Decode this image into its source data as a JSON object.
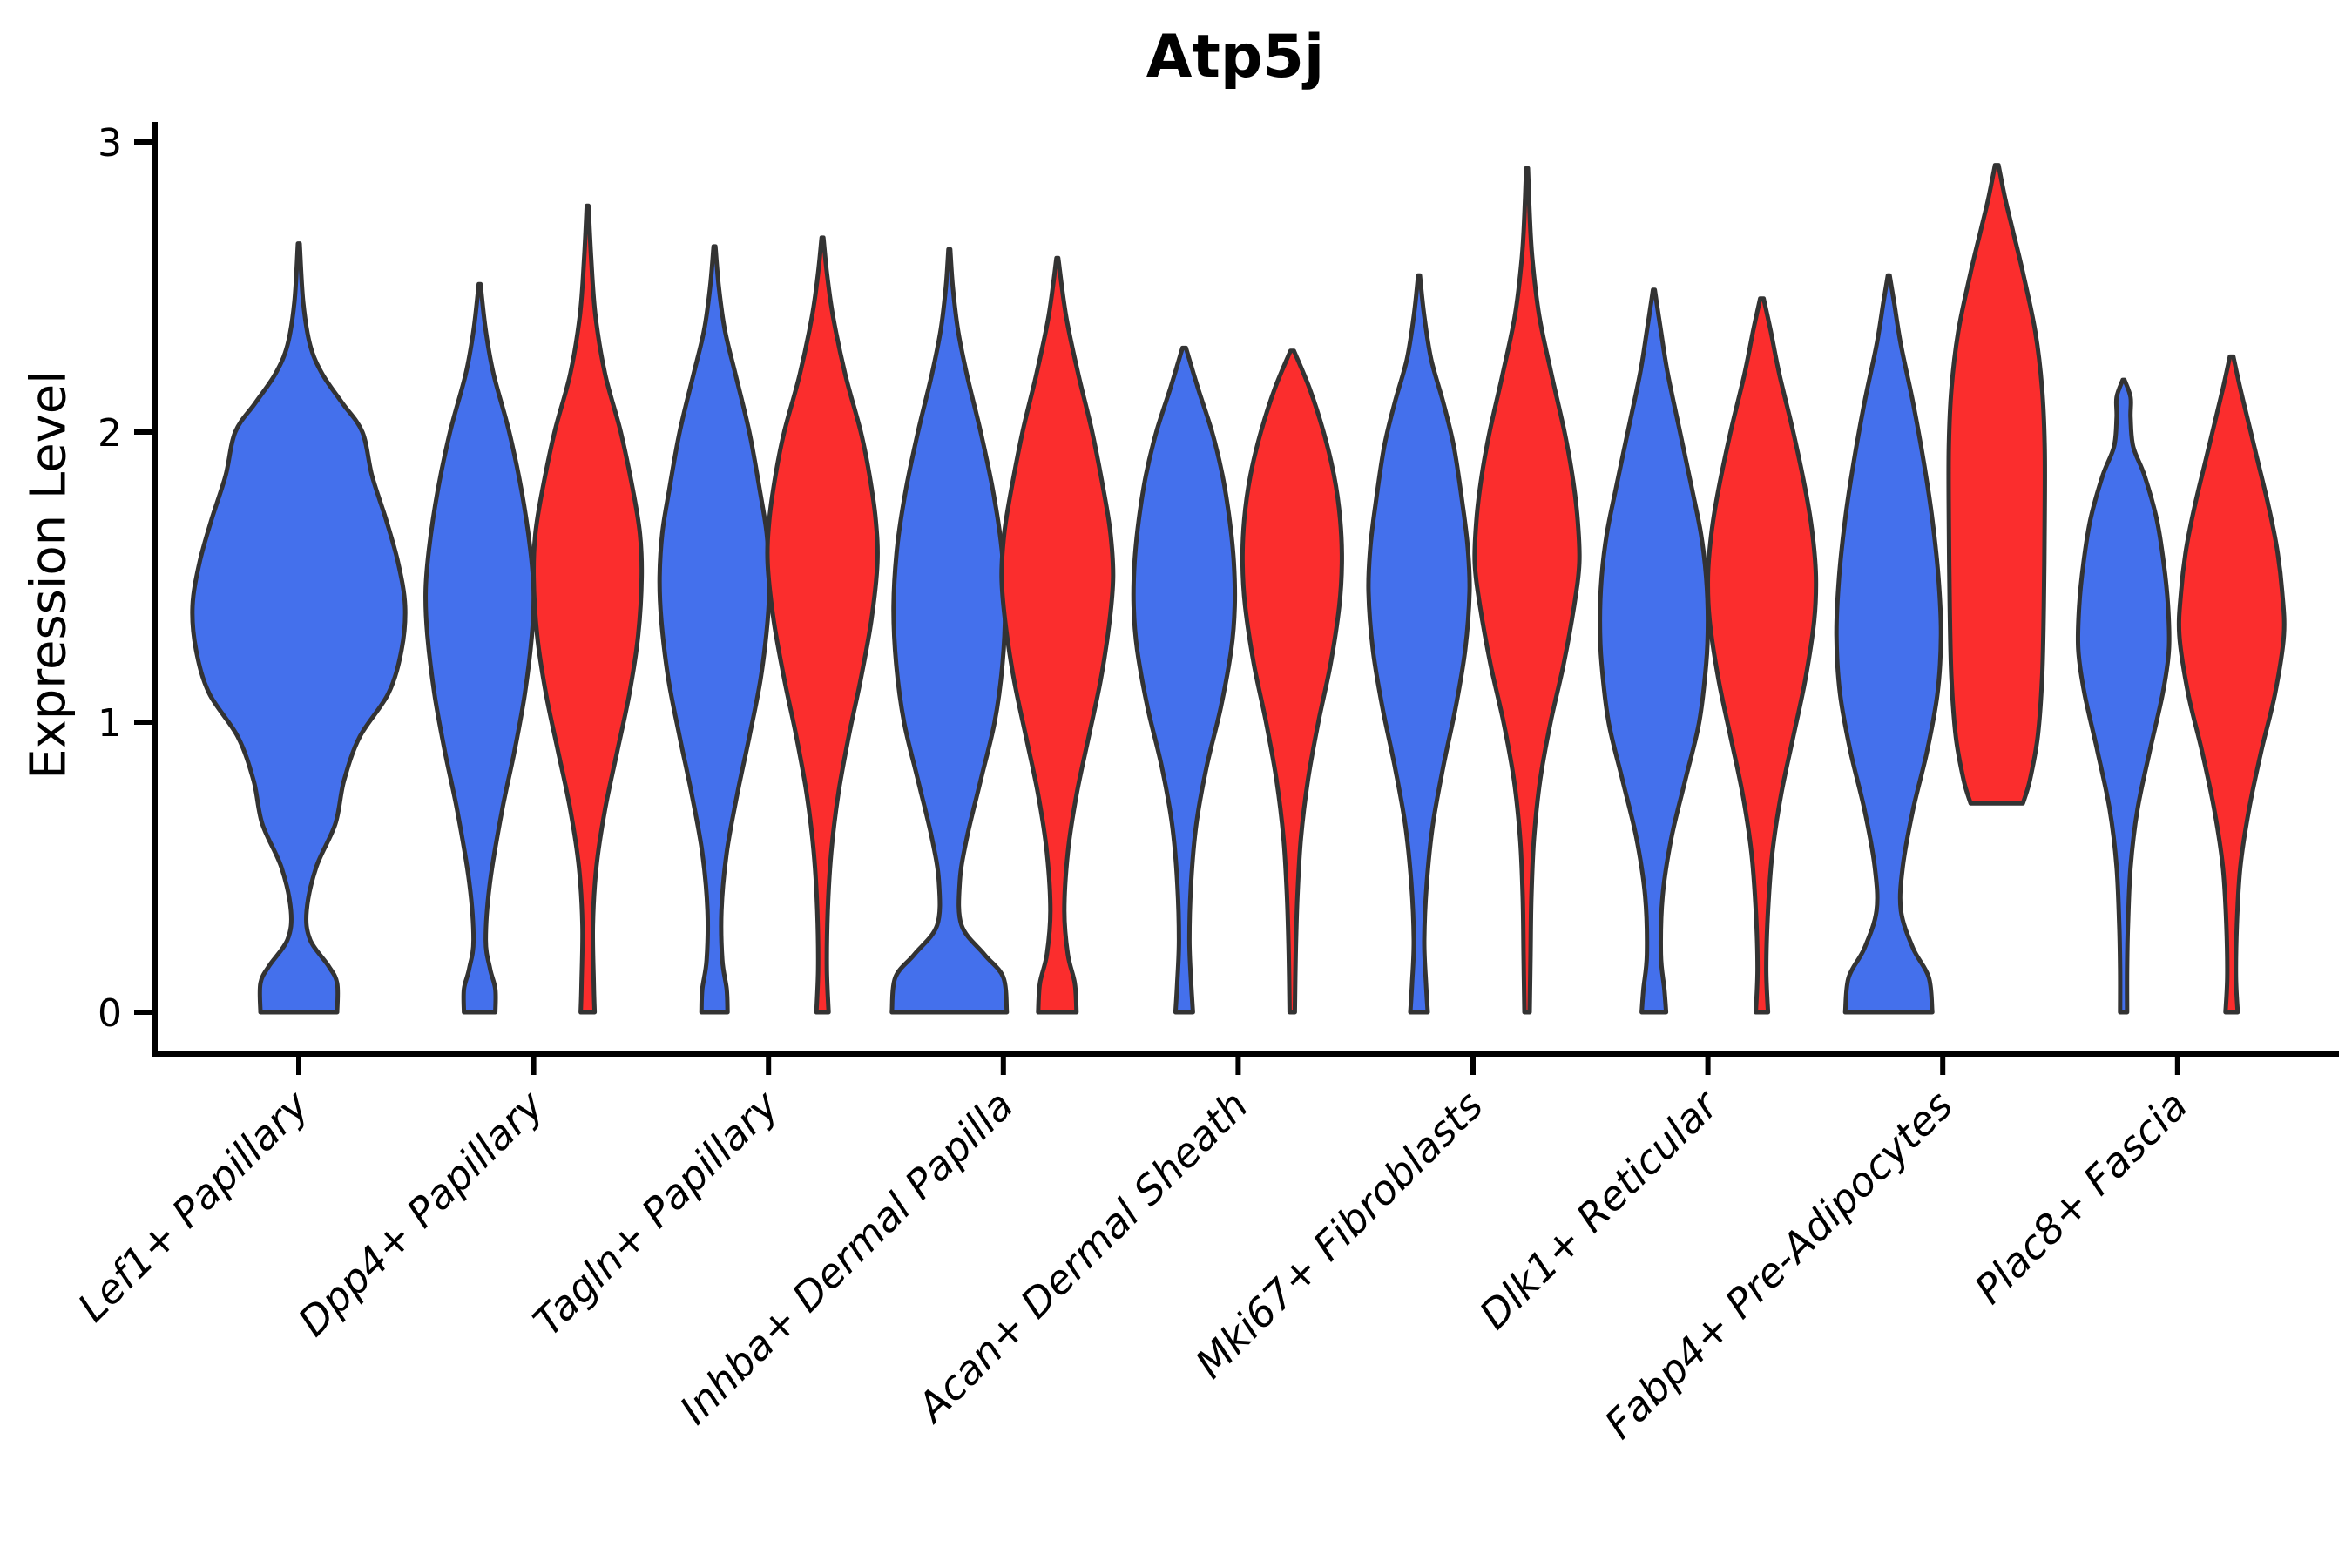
{
  "title": "Atp5j",
  "colors": {
    "blue": "#4470EC",
    "red": "#FB2D2D",
    "outline": "#333333",
    "axis": "#000000",
    "text": "#000000"
  },
  "chart_data": {
    "type": "violin",
    "title": "Atp5j",
    "xlabel": "",
    "ylabel": "Expression Level",
    "ylim": [
      0,
      3
    ],
    "y_ticks": [
      0,
      1,
      2,
      3
    ],
    "grid": false,
    "legend": "none",
    "x_tick_label_style": "italic, rotated 45deg, anchored at tick",
    "categories": [
      "Lef1+ Papillary",
      "Dpp4+ Papillary",
      "Tagln+ Papillary",
      "Inhba+ Dermal Papilla",
      "Acan+ Dermal Sheath",
      "Mki67+ Fibroblasts",
      "Dlk1+ Reticular",
      "Fabp4+ Pre-Adipocytes",
      "Plac8+ Fascia"
    ],
    "series": [
      {
        "name": "blue",
        "color": "#4470EC"
      },
      {
        "name": "red",
        "color": "#FB2D2D"
      }
    ],
    "violin_note": "profile = [expression_value, half_width_px]; one violin per category+series; first category has a single centered blue violin; Fabp4+ red violin is truncated flat at value 0.72",
    "violins": [
      {
        "category": 0,
        "series": "blue",
        "position": "center",
        "min_value": 0,
        "max_value": 2.65,
        "profile": [
          [
            0,
            44
          ],
          [
            0.1,
            44
          ],
          [
            0.16,
            34
          ],
          [
            0.25,
            13
          ],
          [
            0.35,
            9
          ],
          [
            0.5,
            20
          ],
          [
            0.65,
            42
          ],
          [
            0.8,
            52
          ],
          [
            0.95,
            70
          ],
          [
            1.1,
            103
          ],
          [
            1.25,
            118
          ],
          [
            1.4,
            122
          ],
          [
            1.55,
            114
          ],
          [
            1.7,
            100
          ],
          [
            1.85,
            84
          ],
          [
            2.0,
            73
          ],
          [
            2.1,
            50
          ],
          [
            2.2,
            27
          ],
          [
            2.3,
            13
          ],
          [
            2.45,
            5
          ],
          [
            2.65,
            1
          ]
        ]
      },
      {
        "category": 1,
        "series": "blue",
        "position": "left",
        "min_value": 0,
        "max_value": 2.51,
        "profile": [
          [
            0,
            18
          ],
          [
            0.08,
            18
          ],
          [
            0.15,
            12
          ],
          [
            0.25,
            7
          ],
          [
            0.45,
            12
          ],
          [
            0.7,
            26
          ],
          [
            0.9,
            40
          ],
          [
            1.1,
            52
          ],
          [
            1.3,
            60
          ],
          [
            1.45,
            62
          ],
          [
            1.6,
            58
          ],
          [
            1.8,
            48
          ],
          [
            2.0,
            34
          ],
          [
            2.2,
            16
          ],
          [
            2.35,
            7
          ],
          [
            2.51,
            1
          ]
        ]
      },
      {
        "category": 1,
        "series": "red",
        "position": "right",
        "min_value": 0,
        "max_value": 2.78,
        "profile": [
          [
            0,
            8
          ],
          [
            0.1,
            7
          ],
          [
            0.3,
            6
          ],
          [
            0.5,
            10
          ],
          [
            0.7,
            20
          ],
          [
            0.9,
            34
          ],
          [
            1.1,
            48
          ],
          [
            1.3,
            58
          ],
          [
            1.5,
            62
          ],
          [
            1.65,
            60
          ],
          [
            1.8,
            52
          ],
          [
            2.0,
            38
          ],
          [
            2.2,
            20
          ],
          [
            2.4,
            9
          ],
          [
            2.6,
            4
          ],
          [
            2.78,
            1
          ]
        ]
      },
      {
        "category": 2,
        "series": "blue",
        "position": "left",
        "min_value": 0,
        "max_value": 2.64,
        "profile": [
          [
            0,
            15
          ],
          [
            0.08,
            14
          ],
          [
            0.18,
            9
          ],
          [
            0.35,
            8
          ],
          [
            0.55,
            14
          ],
          [
            0.75,
            26
          ],
          [
            0.95,
            40
          ],
          [
            1.15,
            53
          ],
          [
            1.35,
            61
          ],
          [
            1.5,
            63
          ],
          [
            1.65,
            60
          ],
          [
            1.8,
            52
          ],
          [
            2.0,
            40
          ],
          [
            2.2,
            24
          ],
          [
            2.35,
            12
          ],
          [
            2.5,
            5
          ],
          [
            2.64,
            1
          ]
        ]
      },
      {
        "category": 2,
        "series": "red",
        "position": "right",
        "min_value": 0,
        "max_value": 2.67,
        "profile": [
          [
            0,
            7
          ],
          [
            0.15,
            5
          ],
          [
            0.35,
            6
          ],
          [
            0.55,
            10
          ],
          [
            0.75,
            18
          ],
          [
            0.95,
            30
          ],
          [
            1.15,
            44
          ],
          [
            1.35,
            56
          ],
          [
            1.55,
            63
          ],
          [
            1.7,
            61
          ],
          [
            1.85,
            54
          ],
          [
            2.0,
            44
          ],
          [
            2.2,
            26
          ],
          [
            2.4,
            12
          ],
          [
            2.55,
            5
          ],
          [
            2.67,
            1
          ]
        ]
      },
      {
        "category": 3,
        "series": "blue",
        "position": "left",
        "min_value": 0,
        "max_value": 2.63,
        "profile": [
          [
            0,
            66
          ],
          [
            0.12,
            62
          ],
          [
            0.2,
            40
          ],
          [
            0.3,
            14
          ],
          [
            0.45,
            12
          ],
          [
            0.6,
            20
          ],
          [
            0.8,
            36
          ],
          [
            1.0,
            52
          ],
          [
            1.2,
            61
          ],
          [
            1.4,
            64
          ],
          [
            1.6,
            60
          ],
          [
            1.8,
            50
          ],
          [
            2.0,
            36
          ],
          [
            2.2,
            20
          ],
          [
            2.35,
            10
          ],
          [
            2.5,
            4
          ],
          [
            2.63,
            1
          ]
        ]
      },
      {
        "category": 3,
        "series": "red",
        "position": "right",
        "min_value": 0,
        "max_value": 2.6,
        "profile": [
          [
            0,
            22
          ],
          [
            0.1,
            20
          ],
          [
            0.2,
            12
          ],
          [
            0.35,
            8
          ],
          [
            0.55,
            12
          ],
          [
            0.75,
            22
          ],
          [
            0.95,
            36
          ],
          [
            1.15,
            50
          ],
          [
            1.35,
            60
          ],
          [
            1.5,
            64
          ],
          [
            1.65,
            61
          ],
          [
            1.8,
            53
          ],
          [
            2.0,
            40
          ],
          [
            2.2,
            24
          ],
          [
            2.4,
            10
          ],
          [
            2.6,
            1
          ]
        ]
      },
      {
        "category": 4,
        "series": "blue",
        "position": "left",
        "min_value": 0,
        "max_value": 2.29,
        "profile": [
          [
            0,
            10
          ],
          [
            0.1,
            8
          ],
          [
            0.25,
            6
          ],
          [
            0.45,
            8
          ],
          [
            0.65,
            14
          ],
          [
            0.85,
            26
          ],
          [
            1.05,
            42
          ],
          [
            1.25,
            54
          ],
          [
            1.4,
            58
          ],
          [
            1.55,
            57
          ],
          [
            1.7,
            52
          ],
          [
            1.85,
            44
          ],
          [
            2.0,
            32
          ],
          [
            2.15,
            16
          ],
          [
            2.29,
            2
          ]
        ]
      },
      {
        "category": 4,
        "series": "red",
        "position": "right",
        "min_value": 0,
        "max_value": 2.28,
        "profile": [
          [
            0,
            3
          ],
          [
            0.2,
            4
          ],
          [
            0.4,
            6
          ],
          [
            0.6,
            10
          ],
          [
            0.8,
            18
          ],
          [
            1.0,
            30
          ],
          [
            1.2,
            44
          ],
          [
            1.4,
            54
          ],
          [
            1.55,
            57
          ],
          [
            1.7,
            55
          ],
          [
            1.85,
            48
          ],
          [
            2.0,
            36
          ],
          [
            2.15,
            20
          ],
          [
            2.28,
            2
          ]
        ]
      },
      {
        "category": 5,
        "series": "blue",
        "position": "left",
        "min_value": 0,
        "max_value": 2.54,
        "profile": [
          [
            0,
            10
          ],
          [
            0.1,
            8
          ],
          [
            0.25,
            6
          ],
          [
            0.45,
            9
          ],
          [
            0.65,
            16
          ],
          [
            0.85,
            28
          ],
          [
            1.05,
            42
          ],
          [
            1.25,
            53
          ],
          [
            1.45,
            58
          ],
          [
            1.6,
            56
          ],
          [
            1.75,
            50
          ],
          [
            1.95,
            40
          ],
          [
            2.1,
            28
          ],
          [
            2.25,
            14
          ],
          [
            2.4,
            6
          ],
          [
            2.54,
            1
          ]
        ]
      },
      {
        "category": 5,
        "series": "red",
        "position": "right",
        "min_value": 0,
        "max_value": 2.91,
        "profile": [
          [
            0,
            3
          ],
          [
            0.2,
            4
          ],
          [
            0.4,
            5
          ],
          [
            0.6,
            8
          ],
          [
            0.8,
            15
          ],
          [
            1.0,
            27
          ],
          [
            1.2,
            42
          ],
          [
            1.4,
            54
          ],
          [
            1.55,
            60
          ],
          [
            1.7,
            58
          ],
          [
            1.85,
            52
          ],
          [
            2.0,
            43
          ],
          [
            2.2,
            28
          ],
          [
            2.4,
            14
          ],
          [
            2.6,
            6
          ],
          [
            2.75,
            3
          ],
          [
            2.91,
            1
          ]
        ]
      },
      {
        "category": 6,
        "series": "blue",
        "position": "left",
        "min_value": 0,
        "max_value": 2.49,
        "profile": [
          [
            0,
            14
          ],
          [
            0.08,
            12
          ],
          [
            0.2,
            8
          ],
          [
            0.4,
            10
          ],
          [
            0.6,
            20
          ],
          [
            0.8,
            36
          ],
          [
            1.0,
            52
          ],
          [
            1.2,
            60
          ],
          [
            1.35,
            62
          ],
          [
            1.5,
            60
          ],
          [
            1.65,
            54
          ],
          [
            1.8,
            44
          ],
          [
            2.0,
            30
          ],
          [
            2.2,
            16
          ],
          [
            2.35,
            8
          ],
          [
            2.49,
            1
          ]
        ]
      },
      {
        "category": 6,
        "series": "red",
        "position": "right",
        "min_value": 0,
        "max_value": 2.46,
        "profile": [
          [
            0,
            7
          ],
          [
            0.15,
            5
          ],
          [
            0.35,
            7
          ],
          [
            0.55,
            12
          ],
          [
            0.75,
            22
          ],
          [
            0.95,
            36
          ],
          [
            1.15,
            50
          ],
          [
            1.35,
            60
          ],
          [
            1.5,
            62
          ],
          [
            1.65,
            58
          ],
          [
            1.8,
            50
          ],
          [
            2.0,
            36
          ],
          [
            2.2,
            20
          ],
          [
            2.35,
            10
          ],
          [
            2.46,
            2
          ]
        ]
      },
      {
        "category": 7,
        "series": "blue",
        "position": "left",
        "min_value": 0,
        "max_value": 2.54,
        "profile": [
          [
            0,
            50
          ],
          [
            0.12,
            46
          ],
          [
            0.22,
            28
          ],
          [
            0.35,
            14
          ],
          [
            0.5,
            16
          ],
          [
            0.7,
            28
          ],
          [
            0.9,
            44
          ],
          [
            1.1,
            56
          ],
          [
            1.3,
            60
          ],
          [
            1.5,
            57
          ],
          [
            1.7,
            50
          ],
          [
            1.9,
            40
          ],
          [
            2.1,
            28
          ],
          [
            2.3,
            14
          ],
          [
            2.45,
            6
          ],
          [
            2.54,
            1
          ]
        ]
      },
      {
        "category": 7,
        "series": "red",
        "position": "right",
        "min_value": 0.72,
        "max_value": 2.92,
        "profile": [
          [
            0.72,
            30
          ],
          [
            0.8,
            38
          ],
          [
            0.95,
            47
          ],
          [
            1.15,
            52
          ],
          [
            1.4,
            54
          ],
          [
            1.7,
            55
          ],
          [
            1.95,
            55
          ],
          [
            2.15,
            52
          ],
          [
            2.35,
            44
          ],
          [
            2.55,
            30
          ],
          [
            2.7,
            18
          ],
          [
            2.8,
            10
          ],
          [
            2.92,
            2
          ]
        ]
      },
      {
        "category": 8,
        "series": "blue",
        "position": "left",
        "min_value": 0,
        "max_value": 2.18,
        "profile": [
          [
            0,
            4
          ],
          [
            0.15,
            4
          ],
          [
            0.3,
            5
          ],
          [
            0.5,
            8
          ],
          [
            0.7,
            16
          ],
          [
            0.9,
            30
          ],
          [
            1.1,
            45
          ],
          [
            1.25,
            52
          ],
          [
            1.4,
            51
          ],
          [
            1.55,
            46
          ],
          [
            1.7,
            38
          ],
          [
            1.85,
            24
          ],
          [
            1.95,
            11
          ],
          [
            2.05,
            8
          ],
          [
            2.12,
            8
          ],
          [
            2.18,
            1
          ]
        ]
      },
      {
        "category": 8,
        "series": "red",
        "position": "right",
        "min_value": 0,
        "max_value": 2.26,
        "profile": [
          [
            0,
            7
          ],
          [
            0.12,
            5
          ],
          [
            0.3,
            6
          ],
          [
            0.5,
            10
          ],
          [
            0.7,
            20
          ],
          [
            0.9,
            34
          ],
          [
            1.1,
            50
          ],
          [
            1.3,
            60
          ],
          [
            1.45,
            58
          ],
          [
            1.6,
            52
          ],
          [
            1.75,
            42
          ],
          [
            1.9,
            30
          ],
          [
            2.05,
            18
          ],
          [
            2.15,
            10
          ],
          [
            2.26,
            2
          ]
        ]
      }
    ]
  }
}
